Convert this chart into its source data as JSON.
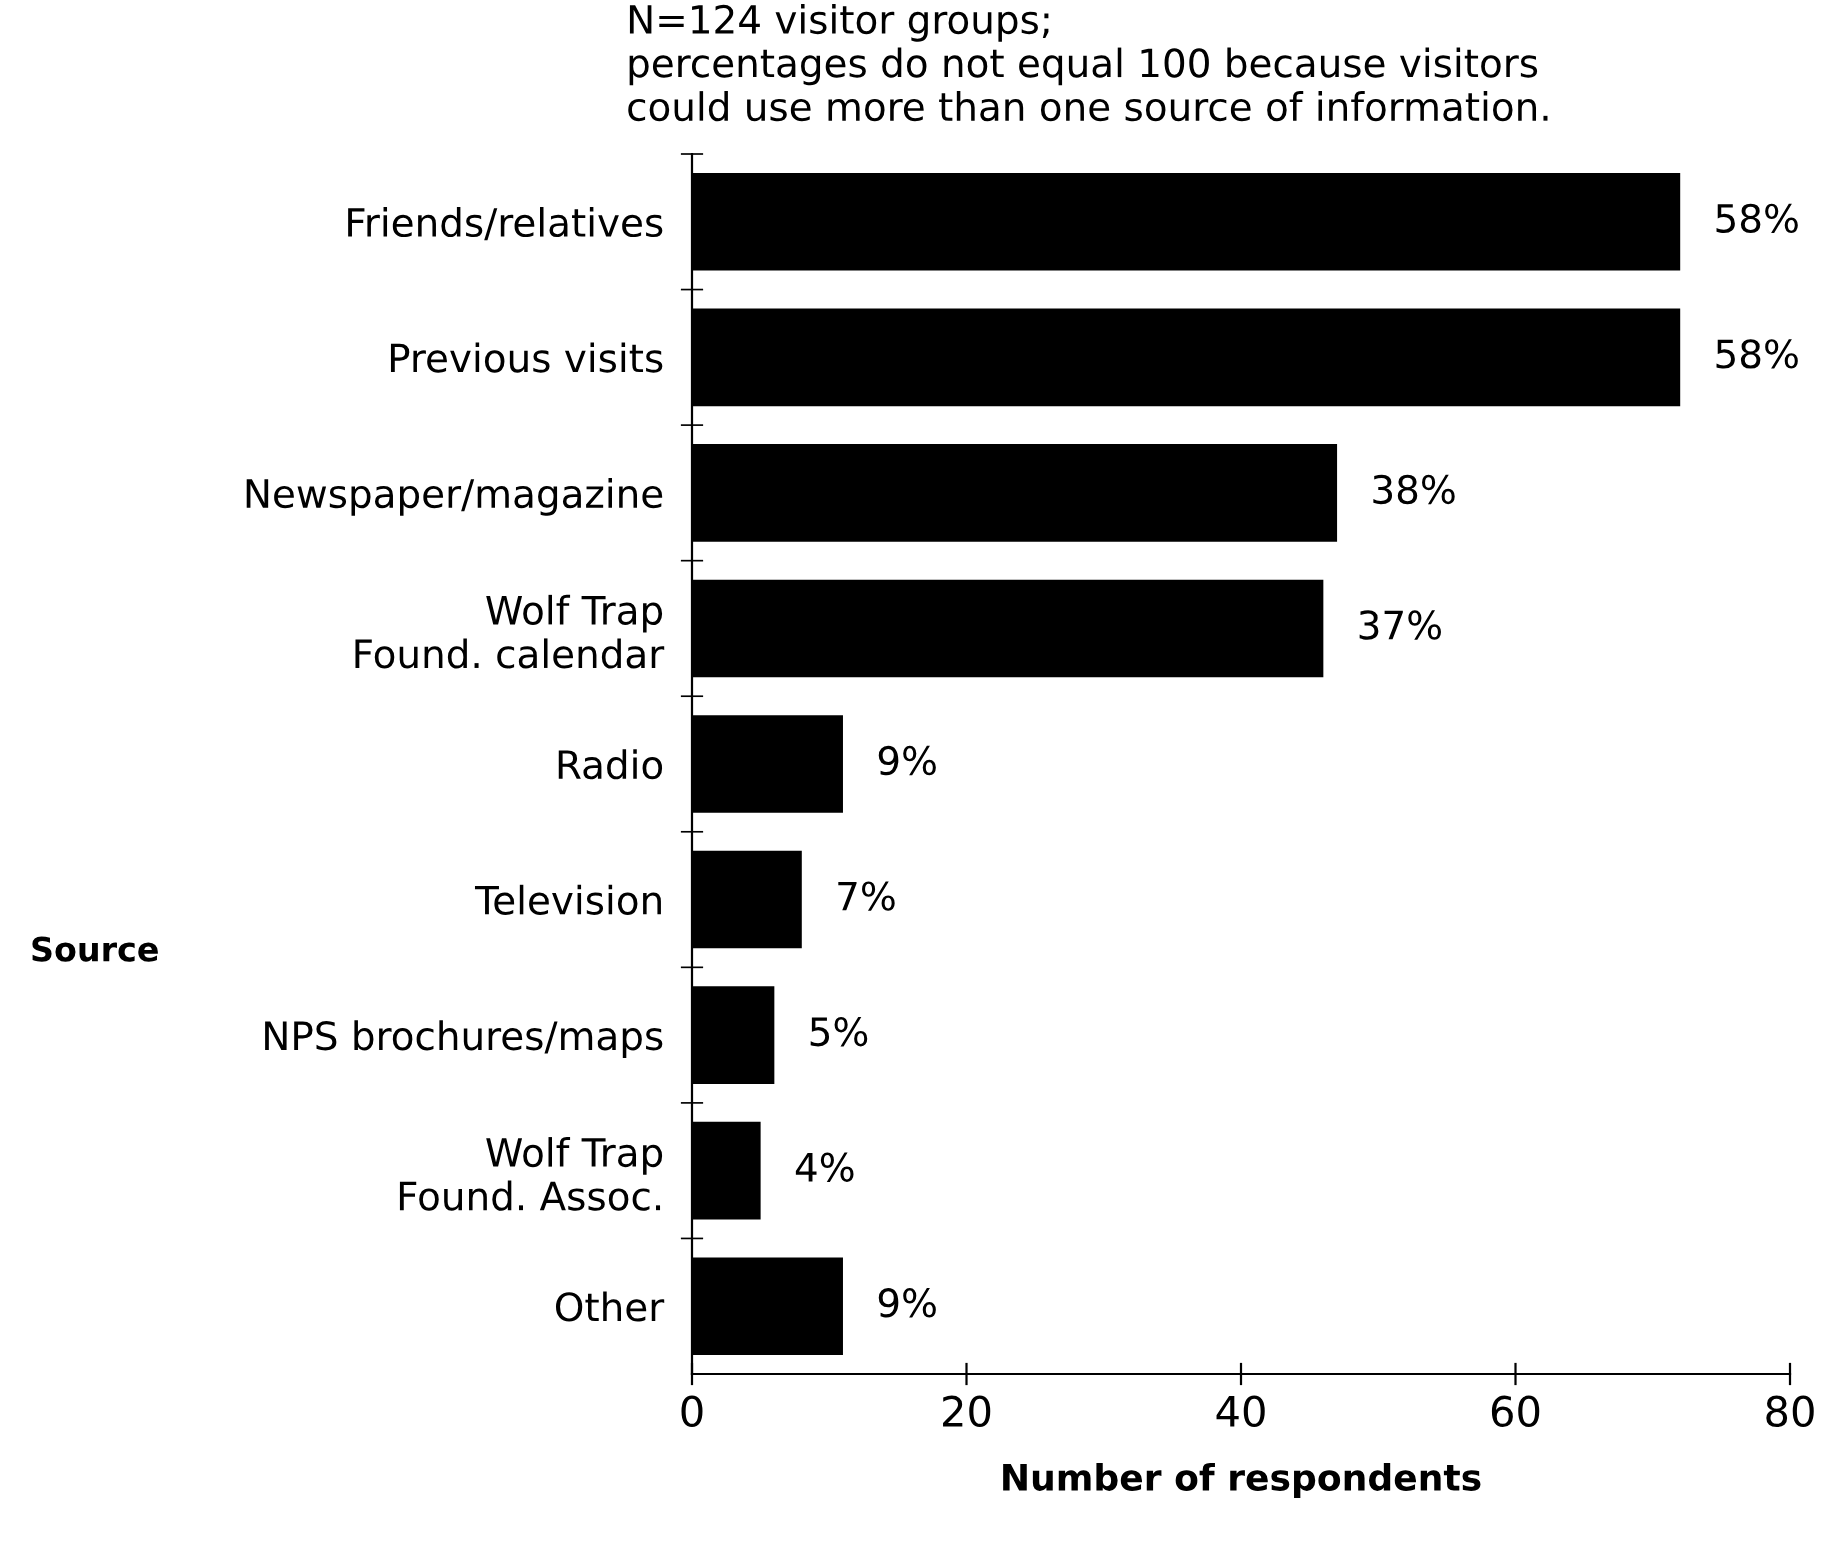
{
  "chart_data": {
    "type": "bar",
    "orientation": "horizontal",
    "title": "N=124 visitor groups;\npercentages do not equal 100 because visitors\ncould use more than one source of information.",
    "xlabel": "Number of respondents",
    "ylabel": "Source",
    "categories": [
      "Friends/relatives",
      "Previous visits",
      "Newspaper/magazine",
      "Wolf Trap\nFound. calendar",
      "Radio",
      "Television",
      "NPS brochures/maps",
      "Wolf Trap\nFound. Assoc.",
      "Other"
    ],
    "values": [
      72,
      72,
      47,
      46,
      11,
      8,
      6,
      5,
      11
    ],
    "annotations": [
      {
        "text": "58%",
        "x": 72,
        "y": "Friends/relatives"
      },
      {
        "text": "58%",
        "x": 72,
        "y": "Previous visits"
      },
      {
        "text": "38%",
        "x": 47,
        "y": "Newspaper/magazine"
      },
      {
        "text": "37%",
        "x": 46,
        "y": "Wolf Trap\nFound. calendar"
      },
      {
        "text": "9%",
        "x": 11,
        "y": "Radio"
      },
      {
        "text": "7%",
        "x": 8,
        "y": "Television"
      },
      {
        "text": "5%",
        "x": 6,
        "y": "NPS brochures/maps"
      },
      {
        "text": "4%",
        "x": 5,
        "y": "Wolf Trap\nFound. Assoc."
      },
      {
        "text": "9%",
        "x": 11,
        "y": "Other"
      }
    ],
    "color": "#000000",
    "xlim": [
      0,
      80
    ],
    "xticks": [
      0,
      20,
      40,
      60,
      80
    ],
    "grid": false,
    "legend": false
  }
}
